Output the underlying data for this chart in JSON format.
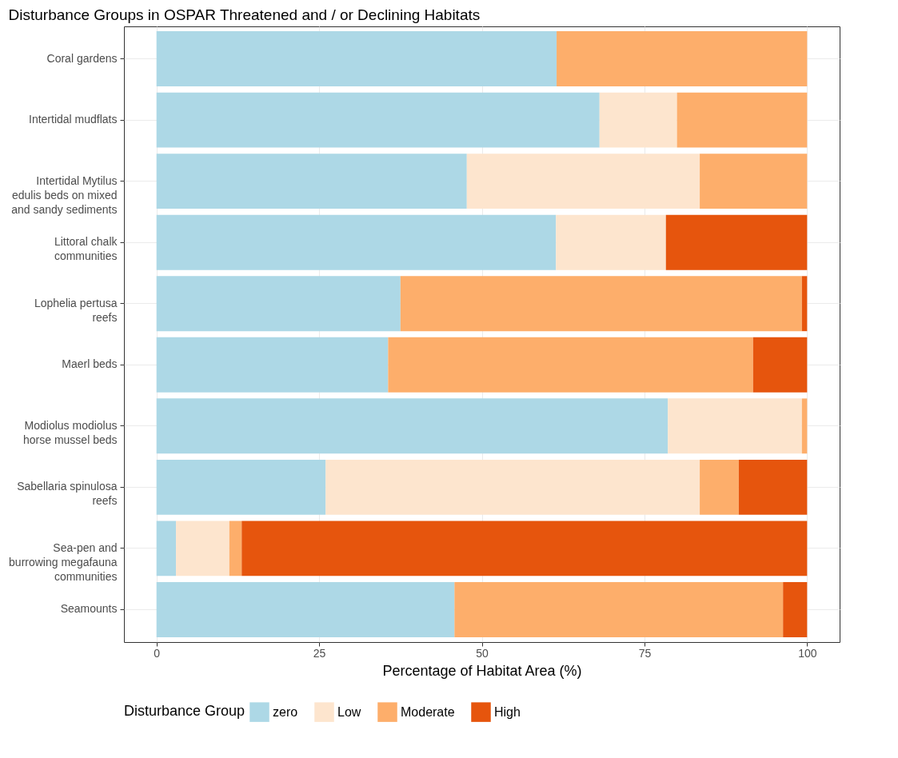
{
  "chart_data": {
    "type": "bar",
    "orientation": "horizontal",
    "stacked": true,
    "title": "Disturbance Groups in OSPAR Threatened and / or Declining Habitats",
    "xlabel": "Percentage of Habitat Area (%)",
    "legend_title": "Disturbance Group",
    "legend": "bottom",
    "grid": true,
    "xlim": [
      -5,
      105
    ],
    "xticks": [
      0,
      25,
      50,
      75,
      100
    ],
    "categories": [
      "Coral gardens",
      "Intertidal mudflats",
      "Intertidal Mytilus\nedulis beds on mixed\nand sandy sediments",
      "Littoral chalk\ncommunities",
      "Lophelia pertusa\nreefs",
      "Maerl beds",
      "Modiolus modiolus\nhorse mussel beds",
      "Sabellaria spinulosa\nreefs",
      "Sea-pen and\nburrowing megafauna\ncommunities",
      "Seamounts"
    ],
    "series": [
      {
        "name": "zero",
        "color": "#add8e6",
        "values": [
          61.5,
          68.1,
          47.7,
          61.4,
          37.5,
          35.6,
          78.6,
          26.0,
          3.0,
          45.8
        ]
      },
      {
        "name": "Low",
        "color": "#fde5ce",
        "values": [
          0,
          11.9,
          35.8,
          16.9,
          0,
          0,
          20.6,
          57.5,
          8.2,
          0
        ]
      },
      {
        "name": "Moderate",
        "color": "#fdae6b",
        "values": [
          38.5,
          20.0,
          16.5,
          0,
          61.7,
          56.1,
          0.8,
          6.0,
          1.9,
          50.5
        ]
      },
      {
        "name": "High",
        "color": "#e6550d",
        "values": [
          0,
          0,
          0,
          21.7,
          0.8,
          8.3,
          0,
          10.5,
          86.9,
          3.7
        ]
      }
    ]
  }
}
